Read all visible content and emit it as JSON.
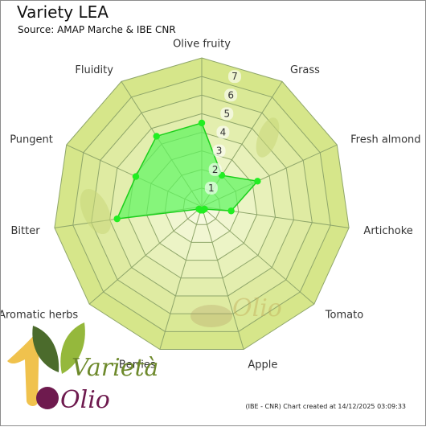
{
  "title": "Variety LEA",
  "subtitle": "Source: AMAP Marche & IBE CNR",
  "footer": "(IBE - CNR) Chart created at 14/12/2025 03:09:33",
  "logo": {
    "top_word": "Varietà",
    "bottom_word": "Olio"
  },
  "watermark": {
    "word": "Olio"
  },
  "colors": {
    "ring_outer": "#d6e68a",
    "ring_inner": "#f5f9de",
    "grid_line": "#8fa66a",
    "series_fill": "#5ef55e",
    "series_line": "#1ccf1c",
    "series_point": "#22ee22",
    "logo_gold": "#f0c24d",
    "logo_leaf_dark": "#4b6b2c",
    "logo_leaf_light": "#95b83c",
    "logo_purple": "#6e1a4e"
  },
  "chart_data": {
    "type": "radar",
    "title": "Variety LEA",
    "subtitle": "Source: AMAP Marche & IBE CNR",
    "categories": [
      "Olive fruity",
      "Grass",
      "Fresh almond",
      "Artichoke",
      "Tomato",
      "Apple",
      "Berries",
      "Aromatic herbs",
      "Bitter",
      "Pungent",
      "Fluidity"
    ],
    "series": [
      {
        "name": "",
        "values": [
          4.5,
          2.0,
          3.3,
          1.6,
          0.2,
          0.2,
          0.2,
          0.2,
          4.6,
          3.9,
          4.5
        ]
      }
    ],
    "radial_ticks": [
      1,
      2,
      3,
      4,
      5,
      6,
      7
    ],
    "rlim": [
      0,
      8
    ],
    "grid": true,
    "legend": "none"
  }
}
